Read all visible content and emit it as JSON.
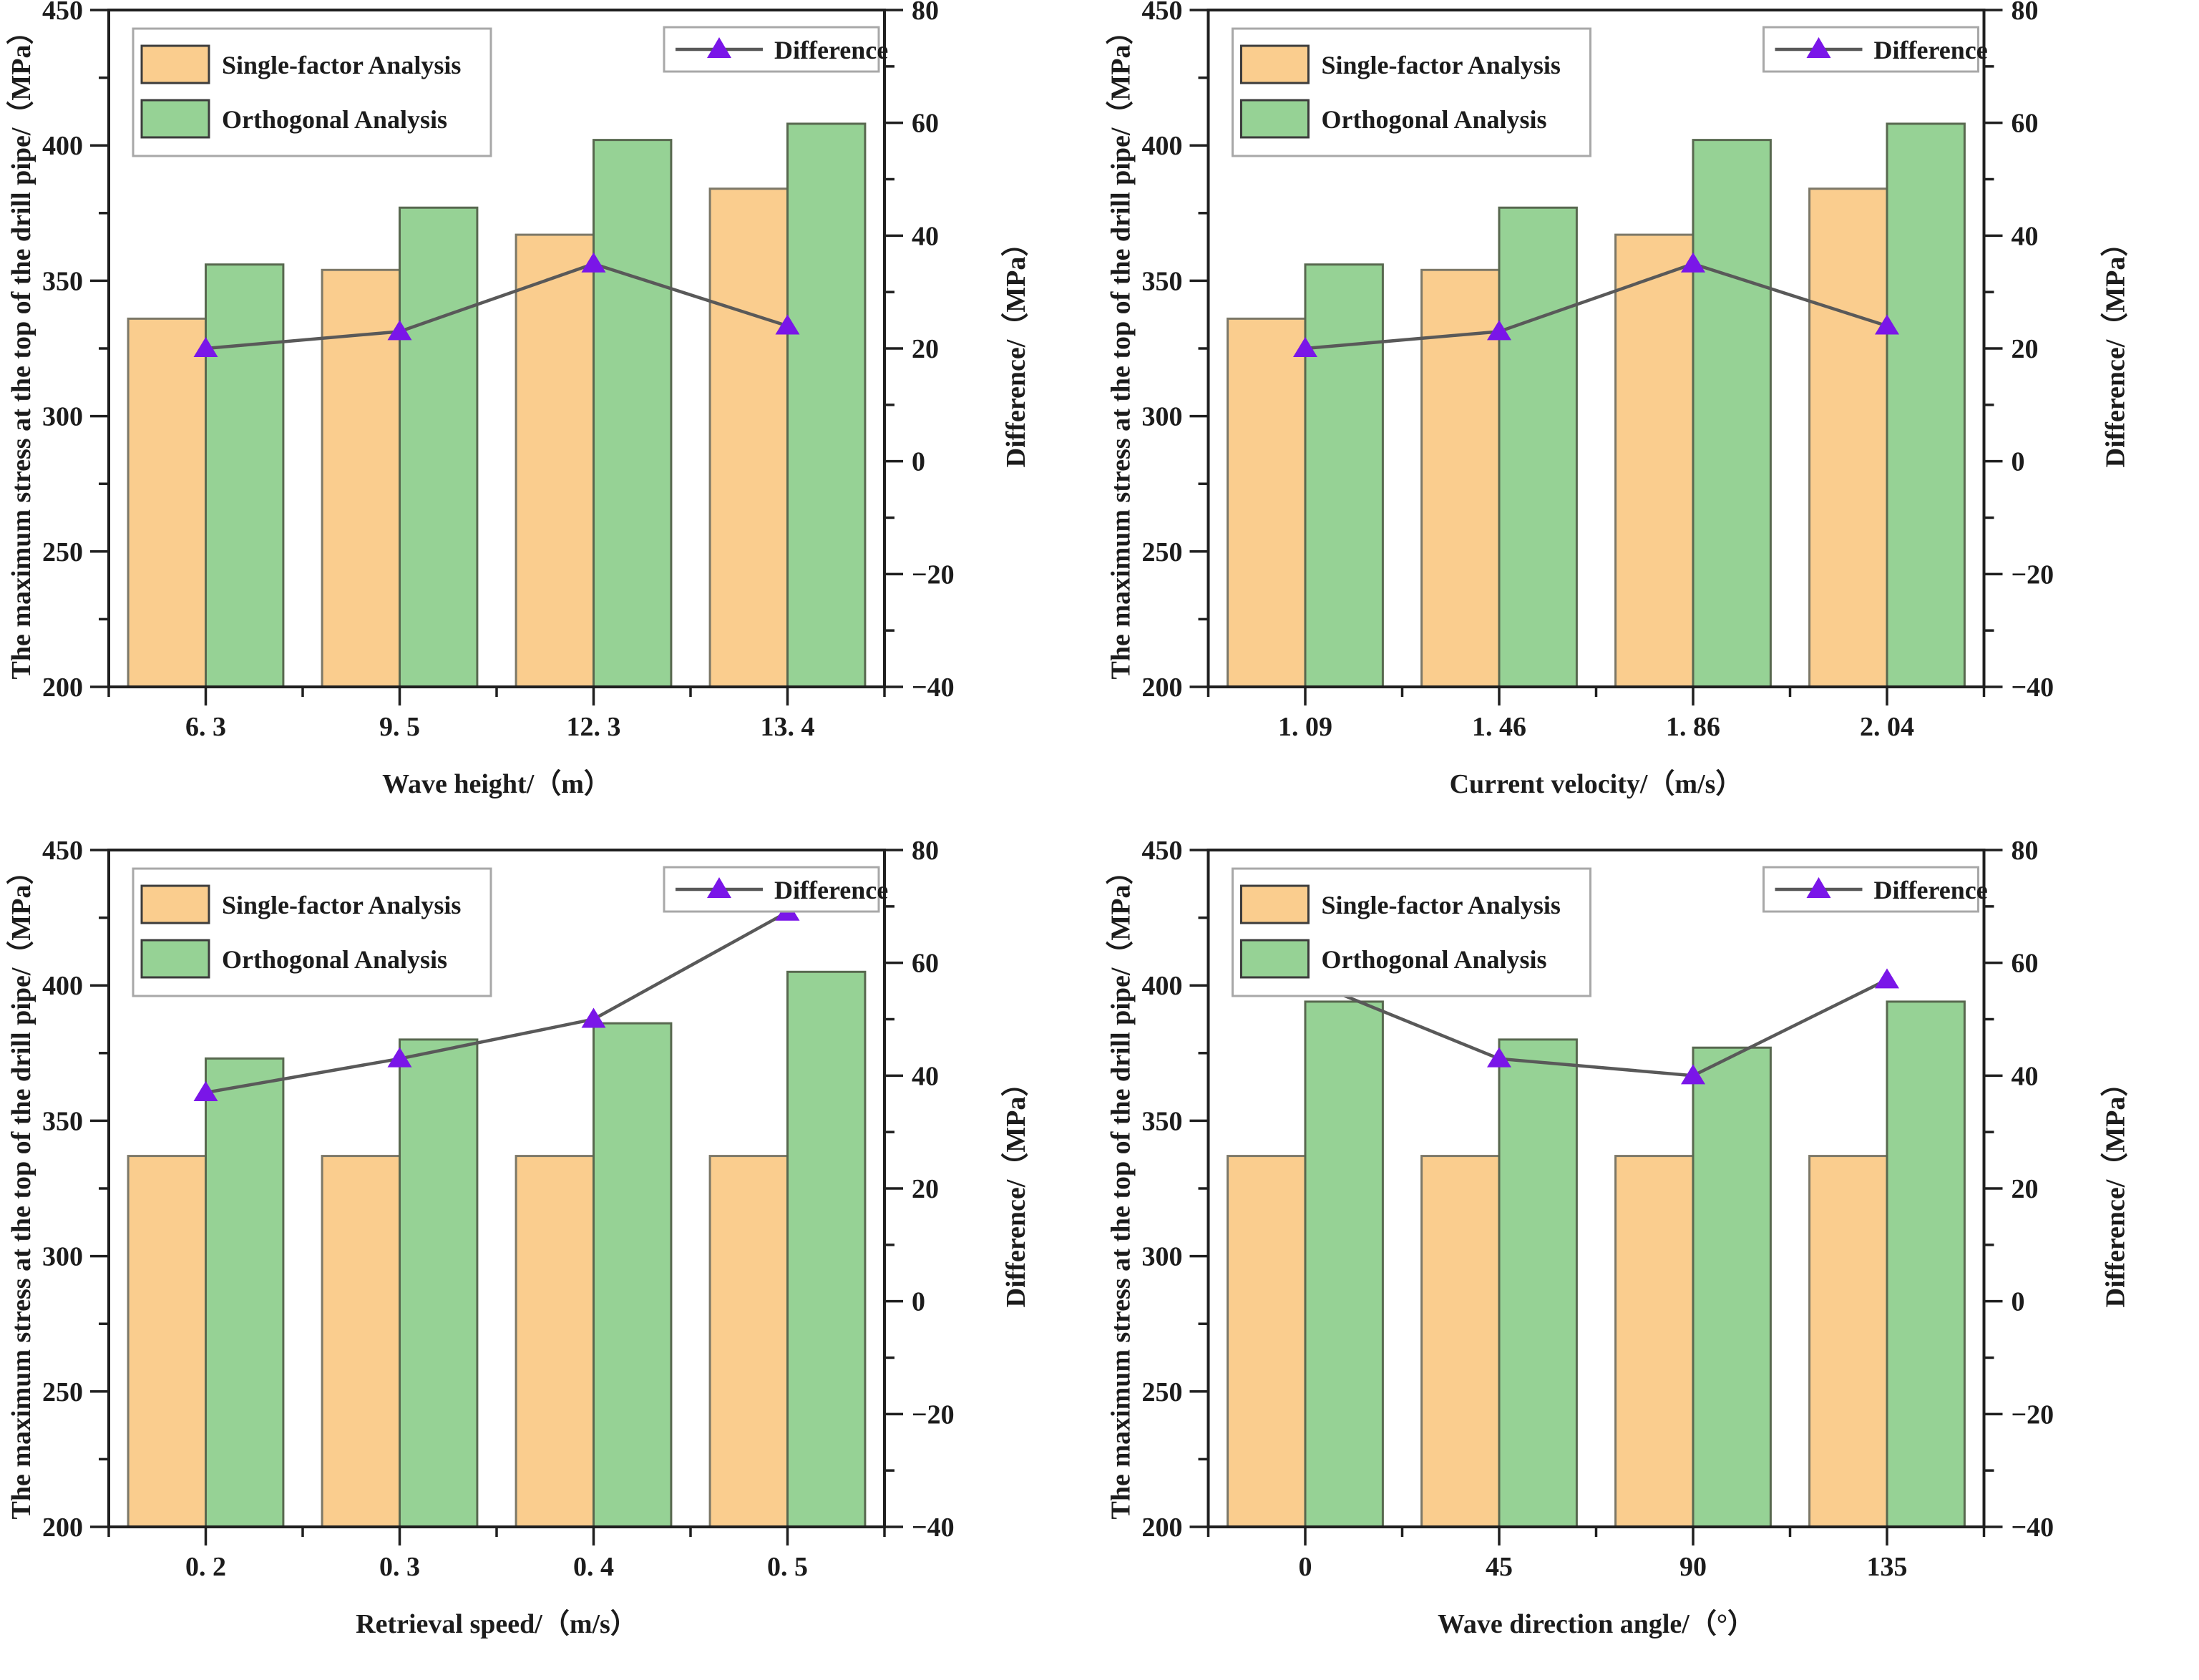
{
  "figure": {
    "background": "#ffffff",
    "left_axis_label": "The maximum stress at the top of the drill pipe/（MPa）",
    "right_axis_label": "Difference/（MPa）",
    "left_axis": {
      "min": 200,
      "max": 450,
      "major_step": 50,
      "minor_step": 25
    },
    "right_axis": {
      "min": -40,
      "max": 80,
      "major_step": 20,
      "minor_step": 10
    },
    "legend": {
      "bar_entries": [
        "Single-factor Analysis",
        "Orthogonal Analysis"
      ],
      "line_entry": "Difference"
    },
    "colors": {
      "single_factor_fill": "#FACD8E",
      "single_factor_edge": "#7C7868",
      "orthogonal_fill": "#96D295",
      "orthogonal_edge": "#58684F",
      "difference_line": "#595959",
      "difference_marker": "#7A16E8",
      "axis": "#1F1F1F",
      "text": "#1C1C1C",
      "legend_border": "#A8A8A8"
    }
  },
  "chart_data": [
    {
      "type": "bar",
      "subtype": "grouped-bars-with-line",
      "position": "top-left",
      "xlabel": "Wave height/（m）",
      "ylabel_left": "The maximum stress at the top of the drill pipe/（MPa）",
      "ylabel_right": "Difference/（MPa）",
      "categories": [
        "6. 3",
        "9. 5",
        "12. 3",
        "13. 4"
      ],
      "left_ylim": [
        200,
        450
      ],
      "right_ylim": [
        -40,
        80
      ],
      "grid": false,
      "series": [
        {
          "name": "Single-factor Analysis",
          "kind": "bar",
          "axis": "left",
          "values": [
            336,
            354,
            367,
            384
          ]
        },
        {
          "name": "Orthogonal Analysis",
          "kind": "bar",
          "axis": "left",
          "values": [
            356,
            377,
            402,
            408
          ]
        },
        {
          "name": "Difference",
          "kind": "line",
          "axis": "right",
          "values": [
            20,
            23,
            35,
            24
          ]
        }
      ]
    },
    {
      "type": "bar",
      "subtype": "grouped-bars-with-line",
      "position": "top-right",
      "xlabel": "Current velocity/（m/s）",
      "ylabel_left": "The maximum stress at the top of the drill pipe/（MPa）",
      "ylabel_right": "Difference/（MPa）",
      "categories": [
        "1. 09",
        "1. 46",
        "1. 86",
        "2. 04"
      ],
      "left_ylim": [
        200,
        450
      ],
      "right_ylim": [
        -40,
        80
      ],
      "grid": false,
      "series": [
        {
          "name": "Single-factor Analysis",
          "kind": "bar",
          "axis": "left",
          "values": [
            336,
            354,
            367,
            384
          ]
        },
        {
          "name": "Orthogonal Analysis",
          "kind": "bar",
          "axis": "left",
          "values": [
            356,
            377,
            402,
            408
          ]
        },
        {
          "name": "Difference",
          "kind": "line",
          "axis": "right",
          "values": [
            20,
            23,
            35,
            24
          ]
        }
      ]
    },
    {
      "type": "bar",
      "subtype": "grouped-bars-with-line",
      "position": "bottom-left",
      "xlabel": "Retrieval speed/（m/s）",
      "ylabel_left": "The maximum stress at the top of the drill pipe/（MPa）",
      "ylabel_right": "Difference/（MPa）",
      "categories": [
        "0. 2",
        "0. 3",
        "0. 4",
        "0. 5"
      ],
      "left_ylim": [
        200,
        450
      ],
      "right_ylim": [
        -40,
        80
      ],
      "grid": false,
      "series": [
        {
          "name": "Single-factor Analysis",
          "kind": "bar",
          "axis": "left",
          "values": [
            337,
            337,
            337,
            337
          ]
        },
        {
          "name": "Orthogonal Analysis",
          "kind": "bar",
          "axis": "left",
          "values": [
            373,
            380,
            386,
            405
          ]
        },
        {
          "name": "Difference",
          "kind": "line",
          "axis": "right",
          "values": [
            37,
            43,
            50,
            69
          ]
        }
      ]
    },
    {
      "type": "bar",
      "subtype": "grouped-bars-with-line",
      "position": "bottom-right",
      "xlabel": "Wave direction angle/（°）",
      "ylabel_left": "The maximum stress at the top of the drill pipe/（MPa）",
      "ylabel_right": "Difference/（MPa）",
      "categories": [
        "0",
        "45",
        "90",
        "135"
      ],
      "left_ylim": [
        200,
        450
      ],
      "right_ylim": [
        -40,
        80
      ],
      "grid": false,
      "series": [
        {
          "name": "Single-factor Analysis",
          "kind": "bar",
          "axis": "left",
          "values": [
            337,
            337,
            337,
            337
          ]
        },
        {
          "name": "Orthogonal Analysis",
          "kind": "bar",
          "axis": "left",
          "values": [
            394,
            380,
            377,
            394
          ]
        },
        {
          "name": "Difference",
          "kind": "line",
          "axis": "right",
          "values": [
            57,
            43,
            40,
            57
          ]
        }
      ]
    }
  ]
}
